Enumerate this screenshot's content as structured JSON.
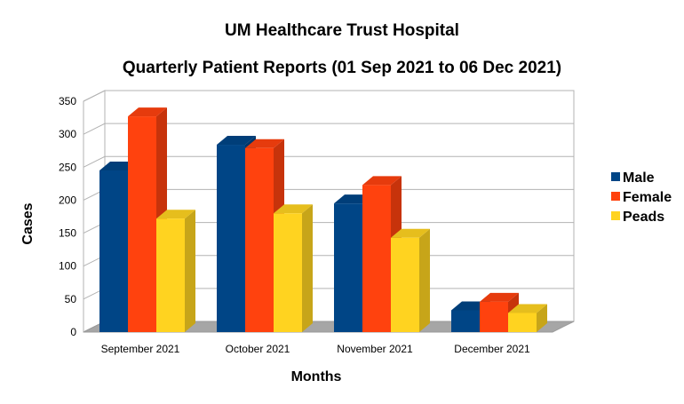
{
  "chart_data": {
    "type": "bar",
    "title": "UM Healthcare Trust Hospital",
    "subtitle": "Quarterly Patient Reports (01 Sep 2021 to 06 Dec 2021)",
    "xlabel": "Months",
    "ylabel": "Cases",
    "categories": [
      "September 2021",
      "October 2021",
      "November 2021",
      "December 2021"
    ],
    "series": [
      {
        "name": "Male",
        "color": "#004586",
        "values": [
          245,
          284,
          195,
          33
        ]
      },
      {
        "name": "Female",
        "color": "#ff420e",
        "values": [
          327,
          279,
          223,
          46
        ]
      },
      {
        "name": "Peads",
        "color": "#ffd320",
        "values": [
          172,
          180,
          143,
          29
        ]
      }
    ],
    "ylim": [
      0,
      350
    ],
    "yticks": [
      0,
      50,
      100,
      150,
      200,
      250,
      300,
      350
    ],
    "grid": true,
    "legend": "right",
    "style": "3d"
  }
}
